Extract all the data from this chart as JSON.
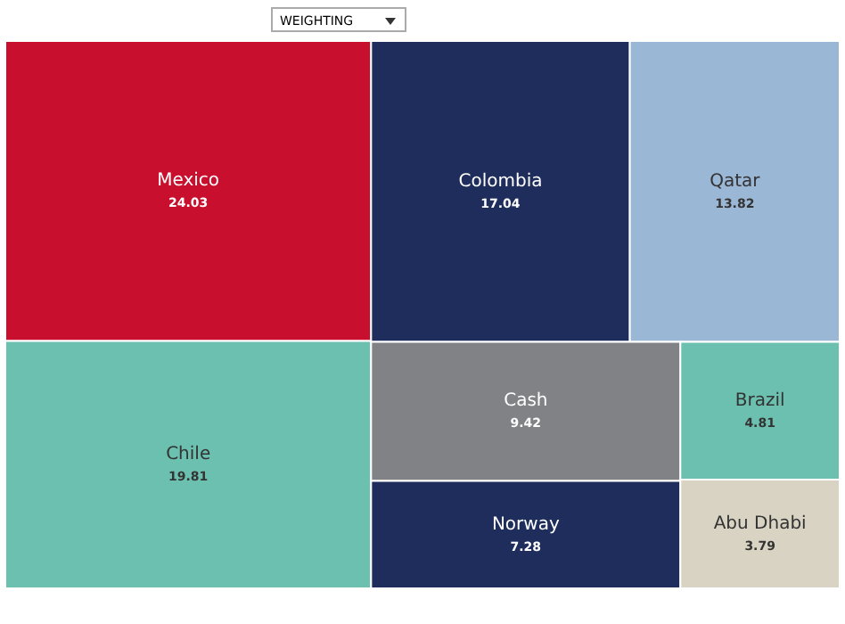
{
  "chart_data": {
    "type": "other",
    "annotations": [
      "WEIGHTING"
    ],
    "data_labels": true,
    "categories": [
      "Mexico",
      "Chile",
      "Colombia",
      "Qatar",
      "Cash",
      "Norway",
      "Brazil",
      "Abu Dhabi"
    ],
    "values": [
      24.03,
      19.81,
      17.04,
      13.82,
      9.42,
      7.28,
      4.81,
      3.79
    ],
    "colors": [
      "#c8102e",
      "#6cc0b0",
      "#1f2d5c",
      "#9bb7d6",
      "#818285",
      "#1f2d5c",
      "#6cc0b0",
      "#d8d3c3"
    ]
  }
}
